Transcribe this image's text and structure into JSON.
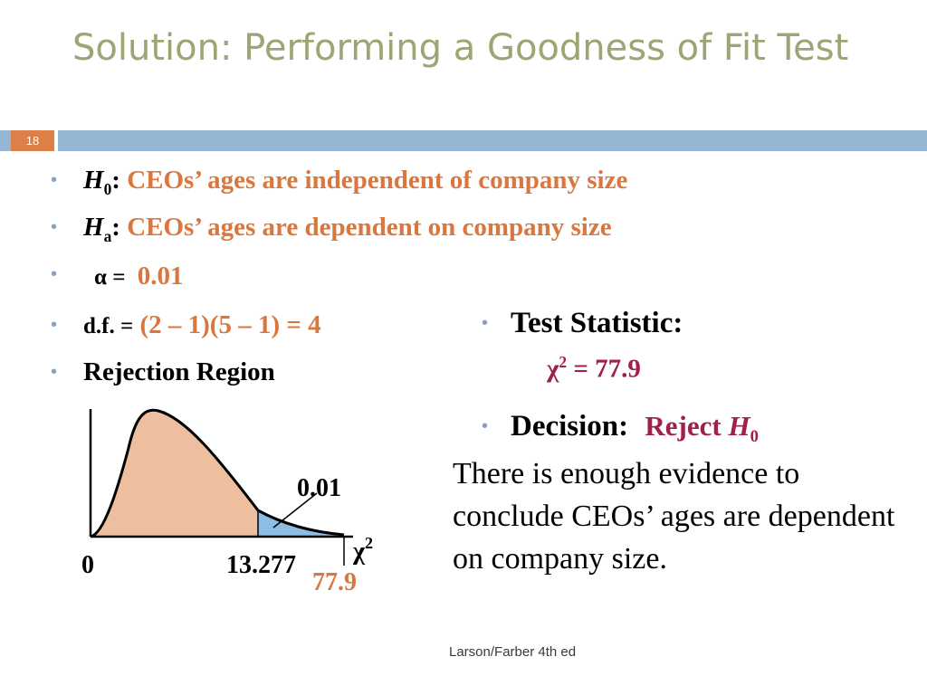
{
  "title": "Solution: Performing a Goodness of Fit Test",
  "slide_number": "18",
  "colors": {
    "title": "#9aa674",
    "bar": "#94b6d2",
    "num_box": "#dd8047",
    "highlight": "#d9773f",
    "decision": "#a0204a",
    "curve_fill": "#eebf9e",
    "tail_fill": "#8ebde3"
  },
  "bullets": {
    "h0": {
      "symbol": "H",
      "sub": "0",
      "colon": ":",
      "text": "CEOs’ ages are independent of company size"
    },
    "ha": {
      "symbol": "H",
      "sub": "a",
      "colon": ":",
      "text": "CEOs’ ages are dependent on company size"
    },
    "alpha": {
      "label": "α =",
      "value": "0.01"
    },
    "df": {
      "label": "d.f. =",
      "value": "(2 – 1)(5 – 1) = 4"
    },
    "rejection": {
      "label": "Rejection Region"
    },
    "test_statistic": {
      "label": "Test Statistic:",
      "chi": "χ",
      "sup": "2",
      "value": " = 77.9"
    },
    "decision": {
      "label": "Decision:",
      "text": "Reject ",
      "symbol": "H",
      "sub": "0"
    }
  },
  "conclusion": "There is enough evidence to conclude CEOs’ ages are dependent on company size.",
  "chart_data": {
    "type": "area",
    "tail_label": "0.01",
    "axis_label_chi": "χ",
    "axis_label_sup": "2",
    "tick_zero": "0",
    "critical_value": "13.277",
    "test_value": "77.9"
  },
  "footer": "Larson/Farber 4th ed"
}
